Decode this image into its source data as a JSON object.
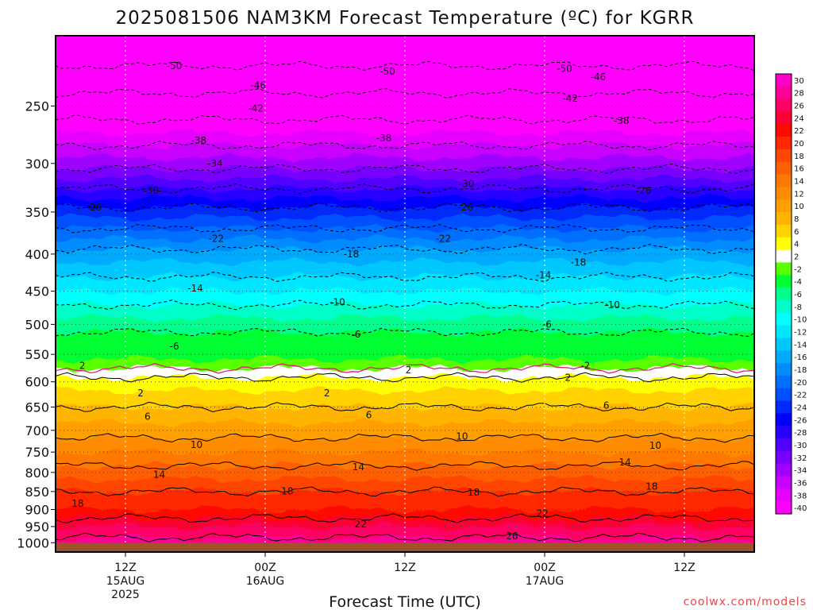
{
  "chart_data": {
    "type": "heatmap",
    "title": "2025081506 NAM3KM Forecast Temperature (ºC) for KGRR",
    "xlabel": "Forecast Time (UTC)",
    "ylabel": "",
    "credit": "coolwx.com/models",
    "y_axis": {
      "scale": "log",
      "range": [
        200,
        1030
      ],
      "reversed": true,
      "ticks": [
        250,
        300,
        350,
        400,
        450,
        500,
        550,
        600,
        650,
        700,
        750,
        800,
        850,
        900,
        950,
        1000
      ]
    },
    "x_axis": {
      "range_hours": [
        0,
        60
      ],
      "ticks": [
        {
          "hour": 6,
          "line1": "12Z",
          "line2": "15AUG",
          "line3": "2025"
        },
        {
          "hour": 18,
          "line1": "00Z",
          "line2": "16AUG",
          "line3": ""
        },
        {
          "hour": 30,
          "line1": "12Z",
          "line2": "",
          "line3": ""
        },
        {
          "hour": 42,
          "line1": "00Z",
          "line2": "17AUG",
          "line3": ""
        },
        {
          "hour": 54,
          "line1": "12Z",
          "line2": "",
          "line3": ""
        }
      ]
    },
    "grid": true,
    "surface_pressure": 1000,
    "colorbar": {
      "placement": "right",
      "levels": [
        "30",
        "28",
        "26",
        "24",
        "22",
        "20",
        "18",
        "16",
        "14",
        "12",
        "10",
        "8",
        "6",
        "4",
        "2",
        "-2",
        "-4",
        "-6",
        "-8",
        "-10",
        "-12",
        "-14",
        "-16",
        "-18",
        "-20",
        "-22",
        "-24",
        "-26",
        "-28",
        "-30",
        "-32",
        "-34",
        "-36",
        "-38",
        "-40"
      ],
      "colors": [
        "#ff00c8",
        "#ff0096",
        "#ff0064",
        "#ff0032",
        "#ff0a00",
        "#ff2800",
        "#ff4600",
        "#ff5f00",
        "#ff7800",
        "#ff8c00",
        "#ffa000",
        "#ffb400",
        "#ffd200",
        "#ffff00",
        "#ffffff",
        "#5aff00",
        "#00ff32",
        "#00ff8c",
        "#00ffc8",
        "#00ffff",
        "#00e6ff",
        "#00c8ff",
        "#00aaff",
        "#008cff",
        "#006eff",
        "#0050ff",
        "#0028ff",
        "#0000ff",
        "#2800ff",
        "#5000ff",
        "#7800ff",
        "#a000ff",
        "#c800ff",
        "#e600ff",
        "#ff00ff"
      ]
    },
    "temperature_profile": {
      "pressure": [
        200,
        250,
        300,
        350,
        400,
        450,
        500,
        550,
        575,
        600,
        650,
        700,
        750,
        800,
        850,
        900,
        950,
        1000
      ],
      "temperature": [
        -54,
        -44,
        -35,
        -25,
        -17,
        -12,
        -7,
        -3,
        0,
        3,
        6,
        9,
        12,
        15,
        18,
        20,
        24,
        27
      ]
    },
    "contour_labels": [
      {
        "text": "-50",
        "hour": 10.2,
        "p": 220
      },
      {
        "text": "-50",
        "hour": 28.5,
        "p": 224
      },
      {
        "text": "-50",
        "hour": 43.7,
        "p": 222
      },
      {
        "text": "-46",
        "hour": 17.4,
        "p": 234
      },
      {
        "text": "-46",
        "hour": 46.6,
        "p": 228
      },
      {
        "text": "-42",
        "hour": 17.2,
        "p": 252
      },
      {
        "text": "-42",
        "hour": 44.2,
        "p": 244
      },
      {
        "text": "-38",
        "hour": 12.3,
        "p": 279
      },
      {
        "text": "-38",
        "hour": 28.2,
        "p": 277
      },
      {
        "text": "-38",
        "hour": 48.6,
        "p": 262
      },
      {
        "text": "-34",
        "hour": 13.7,
        "p": 300
      },
      {
        "text": "-30",
        "hour": 8.2,
        "p": 327
      },
      {
        "text": "-30",
        "hour": 35.3,
        "p": 320
      },
      {
        "text": "-26",
        "hour": 3.3,
        "p": 345
      },
      {
        "text": "-26",
        "hour": 35.2,
        "p": 345
      },
      {
        "text": "-26",
        "hour": 50.5,
        "p": 327
      },
      {
        "text": "-22",
        "hour": 13.8,
        "p": 381
      },
      {
        "text": "-22",
        "hour": 33.3,
        "p": 381
      },
      {
        "text": "-18",
        "hour": 25.4,
        "p": 400
      },
      {
        "text": "-18",
        "hour": 44.9,
        "p": 411
      },
      {
        "text": "-14",
        "hour": 12.0,
        "p": 446
      },
      {
        "text": "-14",
        "hour": 41.9,
        "p": 428
      },
      {
        "text": "-10",
        "hour": 24.2,
        "p": 466
      },
      {
        "text": "-10",
        "hour": 47.8,
        "p": 470
      },
      {
        "text": "-6",
        "hour": 10.2,
        "p": 536
      },
      {
        "text": "-6",
        "hour": 25.8,
        "p": 516
      },
      {
        "text": "-6",
        "hour": 42.2,
        "p": 500
      },
      {
        "text": "2",
        "hour": 2.3,
        "p": 570
      },
      {
        "text": "2",
        "hour": 30.3,
        "p": 578
      },
      {
        "text": "-2",
        "hour": 45.5,
        "p": 570
      },
      {
        "text": "2",
        "hour": 44.0,
        "p": 592
      },
      {
        "text": "2",
        "hour": 7.3,
        "p": 622
      },
      {
        "text": "2",
        "hour": 23.3,
        "p": 622
      },
      {
        "text": "6",
        "hour": 7.9,
        "p": 670
      },
      {
        "text": "6",
        "hour": 26.9,
        "p": 667
      },
      {
        "text": "6",
        "hour": 47.3,
        "p": 647
      },
      {
        "text": "10",
        "hour": 12.1,
        "p": 733
      },
      {
        "text": "10",
        "hour": 34.9,
        "p": 714
      },
      {
        "text": "10",
        "hour": 51.5,
        "p": 735
      },
      {
        "text": "14",
        "hour": 8.9,
        "p": 806
      },
      {
        "text": "14",
        "hour": 26.0,
        "p": 786
      },
      {
        "text": "14",
        "hour": 48.9,
        "p": 775
      },
      {
        "text": "18",
        "hour": 19.9,
        "p": 849
      },
      {
        "text": "18",
        "hour": 1.9,
        "p": 883
      },
      {
        "text": "18",
        "hour": 35.9,
        "p": 853
      },
      {
        "text": "18",
        "hour": 51.2,
        "p": 837
      },
      {
        "text": "22",
        "hour": 26.2,
        "p": 943
      },
      {
        "text": "22",
        "hour": 41.8,
        "p": 911
      },
      {
        "text": "26",
        "hour": 39.2,
        "p": 979
      }
    ]
  }
}
